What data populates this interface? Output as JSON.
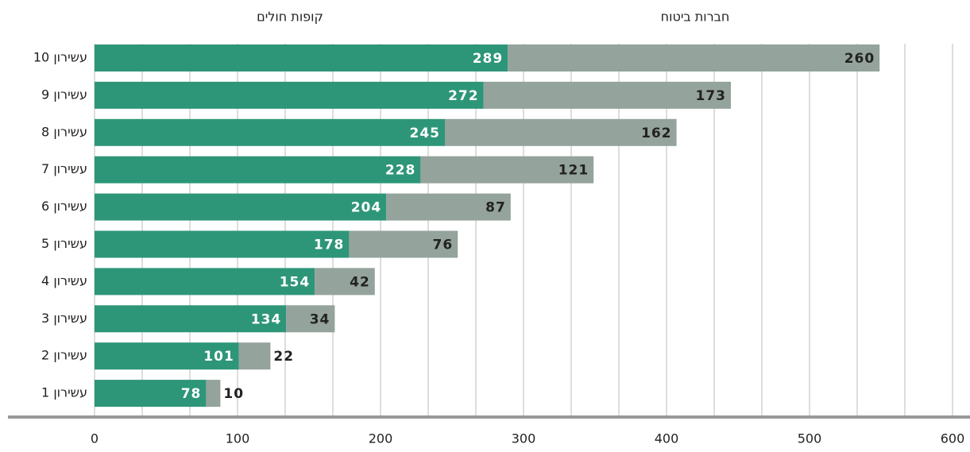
{
  "chart_data": {
    "type": "stacked_barh",
    "categories": [
      "עשירון 10",
      "עשירון 9",
      "עשירון 8",
      "עשירון 7",
      "עשירון 6",
      "עשירון 5",
      "עשירון 4",
      "עשירון 3",
      "עשירון 2",
      "עשירון 1"
    ],
    "series": [
      {
        "name": "קופות חולים",
        "color": "#2e9678",
        "values": [
          289,
          272,
          245,
          228,
          204,
          178,
          154,
          134,
          101,
          78
        ]
      },
      {
        "name": "חברות ביטוח",
        "color": "#94a39b",
        "values": [
          260,
          173,
          162,
          121,
          87,
          76,
          42,
          34,
          22,
          10
        ]
      }
    ],
    "xlim": [
      0,
      600
    ],
    "xticks": [
      0,
      100,
      200,
      300,
      400,
      500,
      600
    ],
    "grid": true
  }
}
